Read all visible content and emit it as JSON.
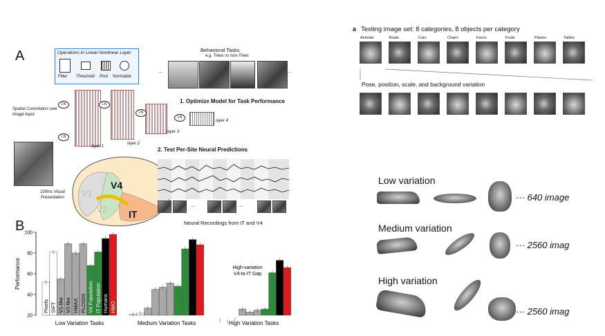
{
  "panel_a": {
    "letter": "A",
    "ops_title": "Operations in Linear-Nonlinear Layer",
    "ops": [
      "Filter",
      "Threshold",
      "Pool",
      "Normalize"
    ],
    "behavioral_title": "Behavioral Tasks",
    "behavioral_sub": "e.g. Trees vs non-Trees",
    "step1": "1. Optimize Model for Task Performance",
    "step2": "2. Test Per-Site Neural Predictions",
    "spatial_conv": "Spatial Convolution over Image Input",
    "ln_label": "LN",
    "layers": [
      "layer 1",
      "layer 2",
      "layer 3",
      "layer 4"
    ],
    "presentation": "100ms Visual Presentation",
    "v1": "V1",
    "v2": "V2",
    "v4": "V4",
    "it": "IT",
    "neural_caption": "Neural Recordings from IT and V4",
    "ellipsis": "..."
  },
  "panel_b": {
    "letter": "B",
    "gap_label_1": "High-variation",
    "gap_label_2": "V4-to-IT Gap"
  },
  "chart_data": {
    "type": "bar",
    "ylabel": "Performance",
    "ylim": [
      20,
      100
    ],
    "yticks": [
      20,
      40,
      60,
      80,
      100
    ],
    "categories": [
      "Low Variation Tasks",
      "Medium Variation Tasks",
      "High Variation Tasks"
    ],
    "series": [
      {
        "name": "Pixels",
        "color": "#ffffff",
        "values": [
          52,
          21,
          15
        ]
      },
      {
        "name": "SIFT",
        "color": "#ffffff",
        "values": [
          81,
          22,
          14
        ]
      },
      {
        "name": "V1-like",
        "color": "#a8a8a8",
        "values": [
          55,
          27,
          16
        ]
      },
      {
        "name": "V2-like",
        "color": "#a8a8a8",
        "values": [
          89,
          45,
          26
        ]
      },
      {
        "name": "HMAX",
        "color": "#a8a8a8",
        "values": [
          80,
          47,
          23
        ]
      },
      {
        "name": "PLOS09",
        "color": "#a8a8a8",
        "values": [
          89,
          51,
          25
        ]
      },
      {
        "name": "V4 Population",
        "color": "#2e8b3a",
        "values": [
          68,
          48,
          26
        ]
      },
      {
        "name": "IT Population",
        "color": "#2e8b3a",
        "values": [
          81,
          84,
          61
        ]
      },
      {
        "name": "Humans",
        "color": "#000000",
        "values": [
          94,
          93,
          73
        ]
      },
      {
        "name": "HMO",
        "color": "#e0191c",
        "values": [
          98,
          88,
          66
        ]
      }
    ]
  },
  "panel_c": {
    "letter": "a",
    "title": "Testing image set:  8 categories, 8 objects per category",
    "categories": [
      "Animals",
      "Boats",
      "Cars",
      "Chairs",
      "Faces",
      "Fruits",
      "Planes",
      "Tables"
    ],
    "subtitle": "Pose, position, scale, and background variation"
  },
  "variations": [
    {
      "title": "Low variation",
      "count": "··· 640 image"
    },
    {
      "title": "Medium variation",
      "count": "··· 2560 imag"
    },
    {
      "title": "High variation",
      "count": "··· 2560 imag"
    }
  ]
}
